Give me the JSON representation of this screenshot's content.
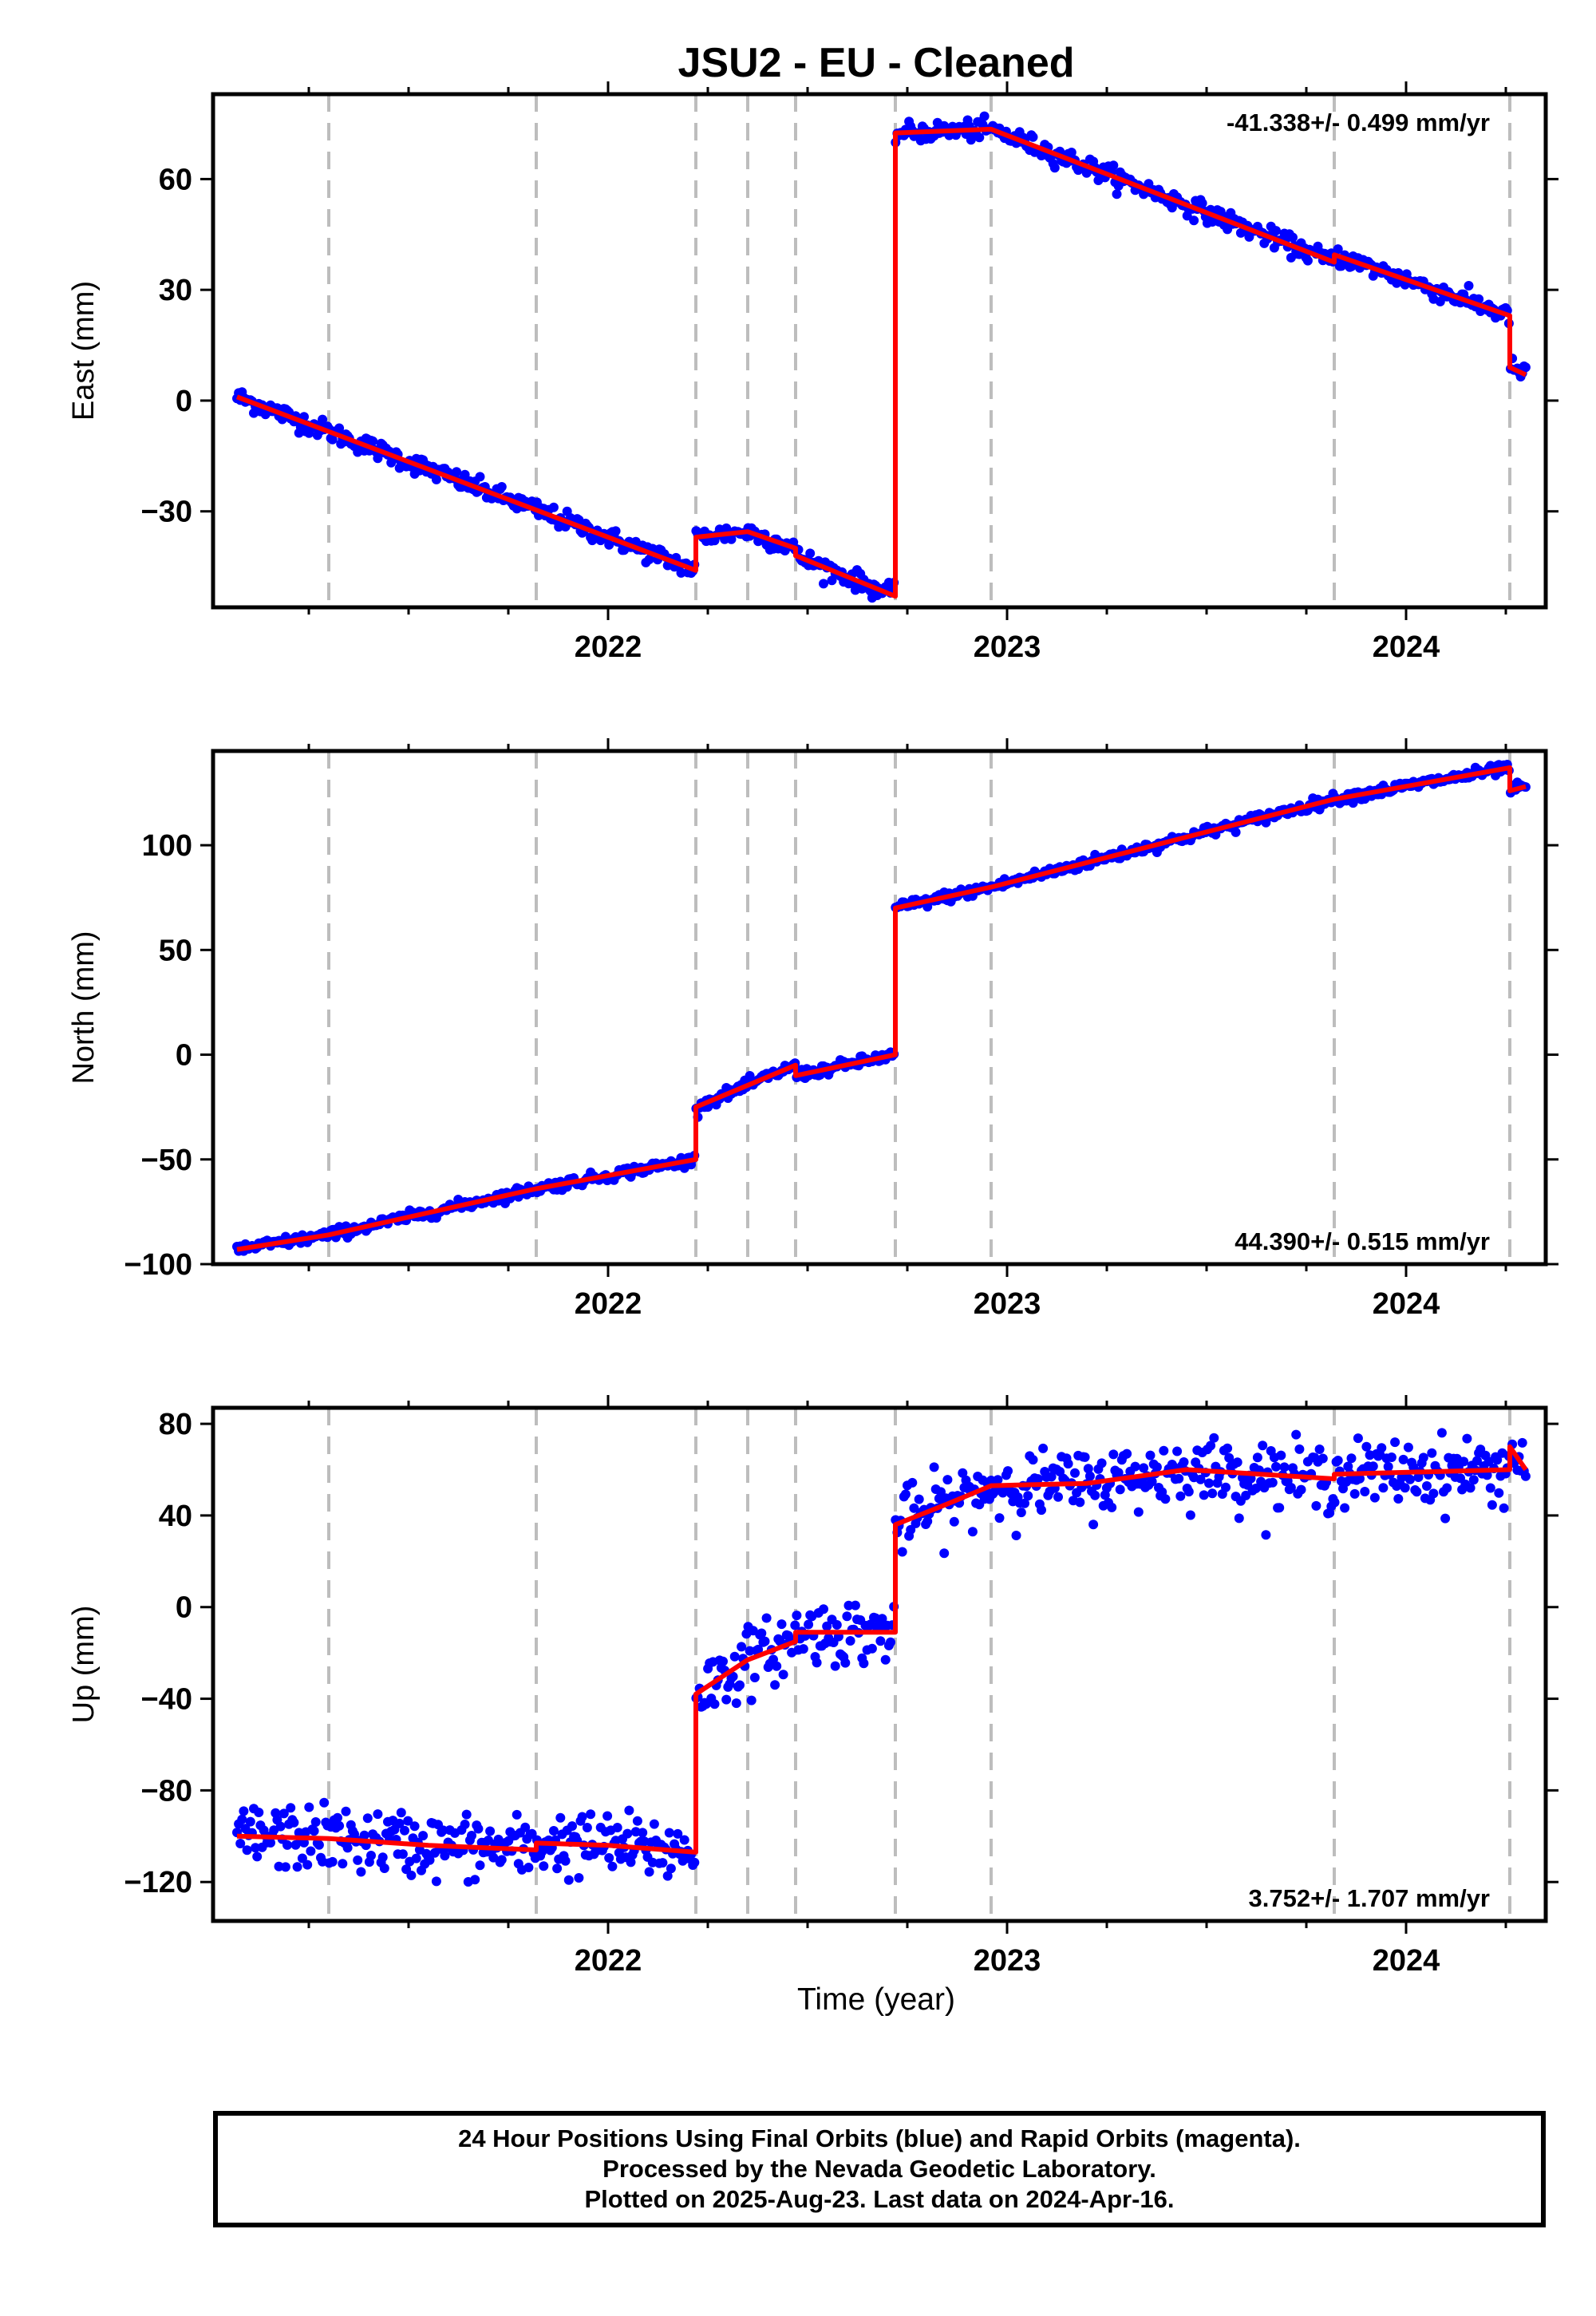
{
  "title": "JSU2  - EU - Cleaned",
  "xlabel": "Time (year)",
  "footer": {
    "line1": "24 Hour Positions Using Final Orbits (blue) and Rapid Orbits (magenta).",
    "line2": "Processed by the Nevada Geodetic Laboratory.",
    "line3": "Plotted on 2025-Aug-23. Last data on 2024-Apr-16."
  },
  "colors": {
    "points": "#0000ff",
    "model": "#ff0000",
    "breaks": "#bdbdbd",
    "frame": "#000000"
  },
  "chart_data": [
    {
      "type": "scatter",
      "ylabel": "East (mm)",
      "rate_label": "-41.338+/- 0.499 mm/yr",
      "rate_position": "top-right",
      "xlim": [
        2021.01,
        2024.35
      ],
      "ylim": [
        -56,
        83
      ],
      "xticks": [
        2022,
        2023,
        2024
      ],
      "yticks": [
        -30,
        0,
        30,
        60
      ],
      "break_epochs": [
        2021.3,
        2021.82,
        2022.22,
        2022.35,
        2022.47,
        2022.72,
        2022.96,
        2023.82,
        2024.26
      ],
      "model_segments": [
        [
          [
            2021.07,
            1.0
          ],
          [
            2022.22,
            -46.0
          ]
        ],
        [
          [
            2022.22,
            -37.0
          ],
          [
            2022.35,
            -35.5
          ],
          [
            2022.47,
            -40.0
          ]
        ],
        [
          [
            2022.47,
            -42.0
          ],
          [
            2022.72,
            -53.0
          ]
        ],
        [
          [
            2022.72,
            72.5
          ],
          [
            2022.96,
            73.5
          ],
          [
            2023.82,
            37.5
          ]
        ],
        [
          [
            2023.82,
            39.5
          ],
          [
            2024.26,
            23.0
          ]
        ],
        [
          [
            2024.26,
            9.0
          ],
          [
            2024.3,
            7.0
          ]
        ]
      ],
      "noise_sd": 1.3
    },
    {
      "type": "scatter",
      "ylabel": "North (mm)",
      "rate_label": "44.390+/- 0.515 mm/yr",
      "rate_position": "bottom-right",
      "xlim": [
        2021.01,
        2024.35
      ],
      "ylim": [
        -100,
        145
      ],
      "xticks": [
        2022,
        2023,
        2024
      ],
      "yticks": [
        -100,
        -50,
        0,
        50,
        100
      ],
      "break_epochs": [
        2021.3,
        2021.82,
        2022.22,
        2022.35,
        2022.47,
        2022.72,
        2022.96,
        2023.82,
        2024.26
      ],
      "model_segments": [
        [
          [
            2021.07,
            -93.0
          ],
          [
            2021.3,
            -86.0
          ],
          [
            2021.82,
            -64.0
          ],
          [
            2022.22,
            -50.0
          ]
        ],
        [
          [
            2022.22,
            -25.0
          ],
          [
            2022.47,
            -5.0
          ]
        ],
        [
          [
            2022.47,
            -10.0
          ],
          [
            2022.72,
            0.0
          ]
        ],
        [
          [
            2022.72,
            70.0
          ],
          [
            2022.96,
            80.0
          ],
          [
            2023.82,
            122.0
          ],
          [
            2024.26,
            137.0
          ]
        ],
        [
          [
            2024.26,
            126.0
          ],
          [
            2024.3,
            128.0
          ]
        ]
      ],
      "noise_sd": 1.3
    },
    {
      "type": "scatter",
      "ylabel": "Up (mm)",
      "rate_label": "3.752+/- 1.707 mm/yr",
      "rate_position": "bottom-right",
      "xlim": [
        2021.01,
        2024.35
      ],
      "ylim": [
        -137,
        87
      ],
      "xticks": [
        2022,
        2023,
        2024
      ],
      "yticks": [
        -120,
        -80,
        -40,
        0,
        40,
        80
      ],
      "break_epochs": [
        2021.3,
        2021.82,
        2022.22,
        2022.35,
        2022.47,
        2022.72,
        2022.96,
        2023.82,
        2024.26
      ],
      "model_segments": [
        [
          [
            2021.07,
            -100.0
          ],
          [
            2021.3,
            -101.0
          ],
          [
            2021.55,
            -104.0
          ],
          [
            2021.82,
            -106.0
          ]
        ],
        [
          [
            2021.82,
            -103.0
          ],
          [
            2022.0,
            -104.0
          ],
          [
            2022.22,
            -107.0
          ]
        ],
        [
          [
            2022.22,
            -38.0
          ],
          [
            2022.35,
            -23.0
          ],
          [
            2022.47,
            -15.0
          ]
        ],
        [
          [
            2022.47,
            -11.0
          ],
          [
            2022.72,
            -11.0
          ]
        ],
        [
          [
            2022.72,
            36.0
          ],
          [
            2022.85,
            45.0
          ],
          [
            2022.96,
            53.0
          ],
          [
            2023.2,
            54.0
          ],
          [
            2023.45,
            60.0
          ],
          [
            2023.82,
            56.0
          ]
        ],
        [
          [
            2023.82,
            58.0
          ],
          [
            2024.26,
            60.0
          ]
        ],
        [
          [
            2024.26,
            70.0
          ],
          [
            2024.3,
            60.0
          ]
        ]
      ],
      "noise_sd": 7.0
    }
  ]
}
